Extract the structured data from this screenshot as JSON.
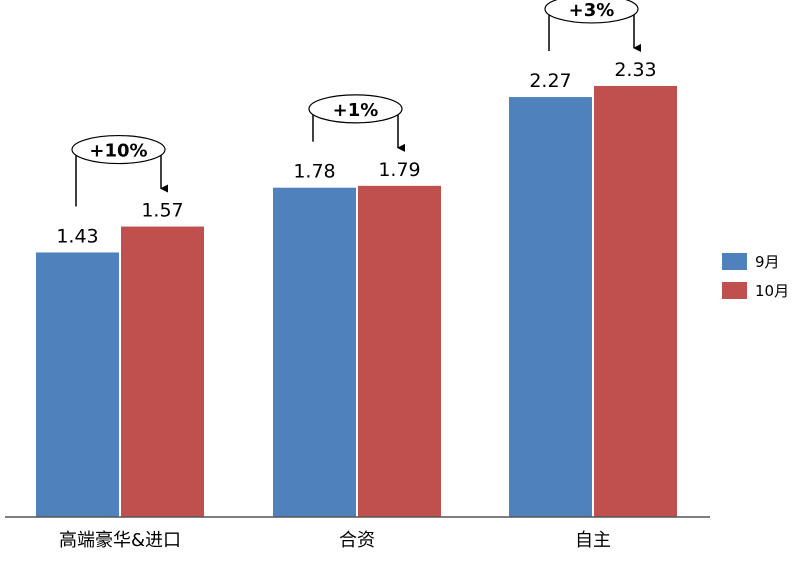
{
  "chart_data": {
    "type": "bar",
    "categories": [
      "高端豪华&进口",
      "合资",
      "自主"
    ],
    "series": [
      {
        "name": "9月",
        "color": "#4F81BD",
        "values": [
          1.43,
          1.78,
          2.27
        ]
      },
      {
        "name": "10月",
        "color": "#C0504D",
        "values": [
          1.57,
          1.79,
          2.33
        ]
      }
    ],
    "annotations": [
      "+10%",
      "+1%",
      "+3%"
    ],
    "ylim": [
      0,
      2.8
    ],
    "grid": false,
    "legend": "right"
  }
}
